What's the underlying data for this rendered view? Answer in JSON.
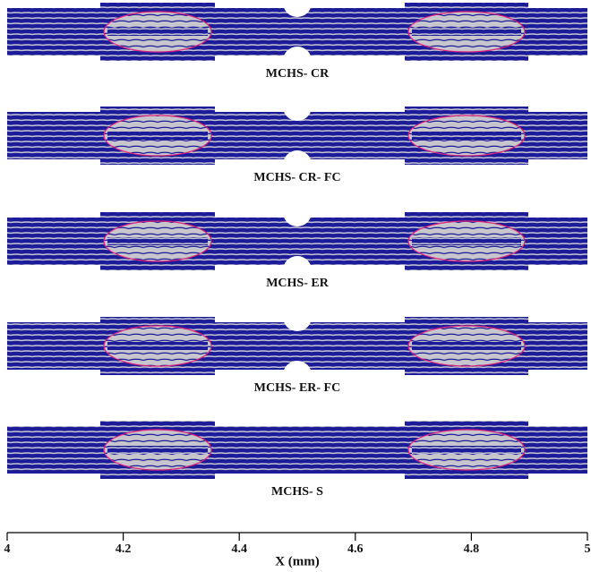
{
  "panels": [
    {
      "label": "MCHS- CR"
    },
    {
      "label": "MCHS- CR- FC"
    },
    {
      "label": "MCHS- ER"
    },
    {
      "label": "MCHS- ER- FC"
    },
    {
      "label": "MCHS- S"
    }
  ],
  "x_axis": {
    "label": "X (mm)",
    "xlim": [
      4,
      5
    ],
    "xticks": [
      4,
      4.2,
      4.4,
      4.6,
      4.8,
      5
    ]
  }
}
